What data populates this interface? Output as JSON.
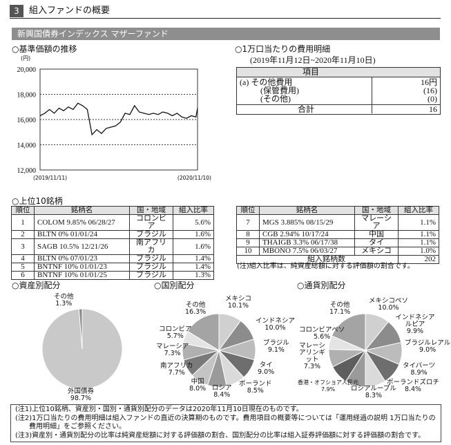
{
  "section": {
    "number": "3",
    "title": "組入ファンドの概要"
  },
  "fund_name": "新興国債券インデックス マザーファンド",
  "nav": {
    "title": "○基準価額の推移",
    "unit": "(円)",
    "chart_data": {
      "type": "line",
      "title": "",
      "xlabel": "",
      "ylabel": "(円)",
      "ylim": [
        12000,
        20000
      ],
      "yticks": [
        "20,000",
        "18,000",
        "16,000",
        "14,000",
        "12,000"
      ],
      "xticks": [
        "(2019/11/11)",
        "(2020/11/10)"
      ],
      "grid": true,
      "x": [
        0,
        3,
        6,
        9,
        12,
        15,
        18,
        21,
        24,
        27,
        30,
        33,
        36,
        39,
        42,
        45,
        48,
        51,
        54,
        57,
        60,
        63,
        66,
        69,
        72,
        75,
        78,
        81,
        84,
        87,
        90,
        93,
        96,
        99,
        100
      ],
      "values": [
        16300,
        16500,
        16800,
        16500,
        16900,
        16700,
        17000,
        16800,
        17300,
        17100,
        16800,
        14800,
        15200,
        14900,
        15300,
        15400,
        15500,
        15800,
        16500,
        16400,
        17100,
        16600,
        16500,
        16400,
        16500,
        16400,
        16600,
        16500,
        16300,
        16500,
        16200,
        16100,
        16300,
        16200,
        16900
      ]
    }
  },
  "cost": {
    "title": "○1万口当たりの費用明細",
    "period": "(2019年11月12日~2020年11月10日)",
    "header": "項目",
    "rows": [
      {
        "label": "(a) その他費用",
        "value": "16円"
      },
      {
        "label": "(保管費用)",
        "value": "(16)"
      },
      {
        "label": "(その他)",
        "value": "(0)"
      }
    ],
    "total_label": "合計",
    "total_value": "16"
  },
  "top10": {
    "title": "○上位10銘柄",
    "headers": [
      "順位",
      "銘柄名",
      "国・地域",
      "組入比率"
    ],
    "left": [
      [
        "1",
        "COLOM 9.85% 06/28/27",
        "コロンビア",
        "5.6%"
      ],
      [
        "2",
        "BLTN 0% 01/01/24",
        "ブラジル",
        "1.6%"
      ],
      [
        "3",
        "SAGB 10.5% 12/21/26",
        "南アフリカ",
        "1.6%"
      ],
      [
        "4",
        "BLTN 0% 07/01/23",
        "ブラジル",
        "1.4%"
      ],
      [
        "5",
        "BNTNF 10% 01/01/23",
        "ブラジル",
        "1.4%"
      ],
      [
        "6",
        "BNTNF 10% 01/01/25",
        "ブラジル",
        "1.3%"
      ]
    ],
    "right": [
      [
        "7",
        "MGS 3.885% 08/15/29",
        "マレーシア",
        "1.1%"
      ],
      [
        "8",
        "CGB 2.94% 10/17/24",
        "中国",
        "1.1%"
      ],
      [
        "9",
        "THAIGB 3.3% 06/17/38",
        "タイ",
        "1.1%"
      ],
      [
        "10",
        "MBONO 7.5% 06/03/27",
        "メキシコ",
        "1.0%"
      ]
    ],
    "count_label": "組入銘柄数",
    "count_value": "202",
    "note": "(注)組入比率は、純資産総額に対する評価額の割合です。"
  },
  "pies": {
    "asset_title": "○資産別配分",
    "country_title": "○国別配分",
    "currency_title": "○通貨別配分",
    "chart_data": [
      {
        "type": "pie",
        "title": "○資産別配分",
        "labels": [
          "外国債券",
          "その他"
        ],
        "values": [
          98.7,
          1.3
        ],
        "texts": [
          "98.7%",
          "1.3%"
        ]
      },
      {
        "type": "pie",
        "title": "○国別配分",
        "labels": [
          "メキシコ",
          "インドネシア",
          "ブラジル",
          "タイ",
          "ポーランド",
          "ロシア",
          "中国",
          "南アフリカ",
          "マレーシア",
          "コロンビア",
          "その他"
        ],
        "values": [
          10.1,
          10.0,
          9.1,
          9.0,
          8.5,
          8.4,
          8.0,
          7.7,
          7.3,
          5.7,
          16.3
        ],
        "texts": [
          "10.1%",
          "10.0%",
          "9.1%",
          "9.0%",
          "8.5%",
          "8.4%",
          "8.0%",
          "7.7%",
          "7.3%",
          "5.7%",
          "16.3%"
        ]
      },
      {
        "type": "pie",
        "title": "○通貨別配分",
        "labels": [
          "メキシコペソ",
          "インドネシアルピア",
          "ブラジルレアル",
          "タイバーツ",
          "ポーランドズロチ",
          "ロシアルーブル",
          "香港・オフショア人民元",
          "マレーシアリンギット",
          "コロンビアペソ",
          "その他"
        ],
        "values": [
          10.0,
          9.9,
          9.0,
          8.9,
          8.4,
          8.3,
          7.9,
          7.3,
          5.6,
          17.1
        ],
        "texts": [
          "10.0%",
          "9.9%",
          "9.0%",
          "8.9%",
          "8.4%",
          "8.3%",
          "7.9%",
          "7.3%",
          "5.6%",
          "17.1%"
        ]
      }
    ],
    "colors": {
      "asset": [
        "#c9c9c9",
        "#8a8a8a"
      ],
      "country": [
        "#d0d0d0",
        "#8c8c8c",
        "#bcbcbc",
        "#6e6e6e",
        "#dadada",
        "#9a9a9a",
        "#c4c4c4",
        "#7a7a7a",
        "#b0b0b0",
        "#e4e4e4",
        "#a4a4a4"
      ],
      "currency": [
        "#d0d0d0",
        "#8c8c8c",
        "#bcbcbc",
        "#6e6e6e",
        "#dadada",
        "#9a9a9a",
        "#5e5e5e",
        "#b0b0b0",
        "#e4e4e4",
        "#a4a4a4"
      ]
    }
  },
  "notes": [
    "(注1)上位10銘柄、資産別・国別・通貨別配分のデータは2020年11月10日現在のものです。",
    "(注2)1万口当たりの費用明細は組入ファンドの直近の決算期のものです。費用項目の概要等については「運用経過の説明 1万口当たりの",
    "　　費用明細」をご参照ください。",
    "(注3)資産別・通貨別配分の比率は純資産総額に対する評価額の割合、国別配分の比率は組入証券評価額に対する評価額の割合です。"
  ]
}
